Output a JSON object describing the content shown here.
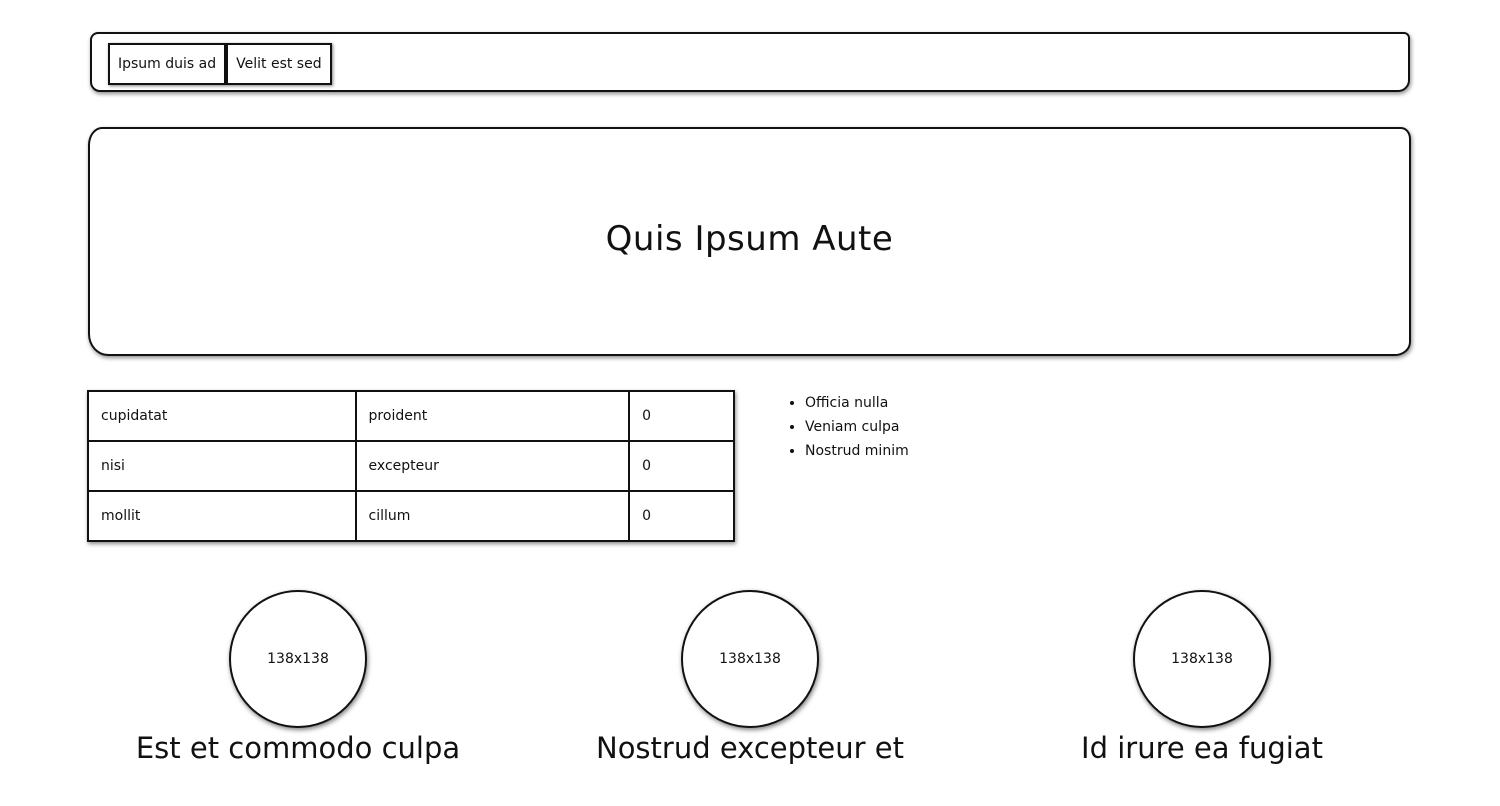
{
  "nav": {
    "tabs": [
      {
        "label": "Ipsum duis ad"
      },
      {
        "label": "Velit est sed"
      }
    ]
  },
  "hero": {
    "title": "Quis Ipsum Aute"
  },
  "table": {
    "rows": [
      [
        "cupidatat",
        "proident",
        "0"
      ],
      [
        "nisi",
        "excepteur",
        "0"
      ],
      [
        "mollit",
        "cillum",
        "0"
      ]
    ]
  },
  "list": {
    "items": [
      "Officia nulla",
      "Veniam culpa",
      "Nostrud minim"
    ]
  },
  "cards": [
    {
      "image_label": "138x138",
      "title": "Est et commodo culpa"
    },
    {
      "image_label": "138x138",
      "title": "Nostrud excepteur et"
    },
    {
      "image_label": "138x138",
      "title": "Id irure ea fugiat"
    }
  ]
}
